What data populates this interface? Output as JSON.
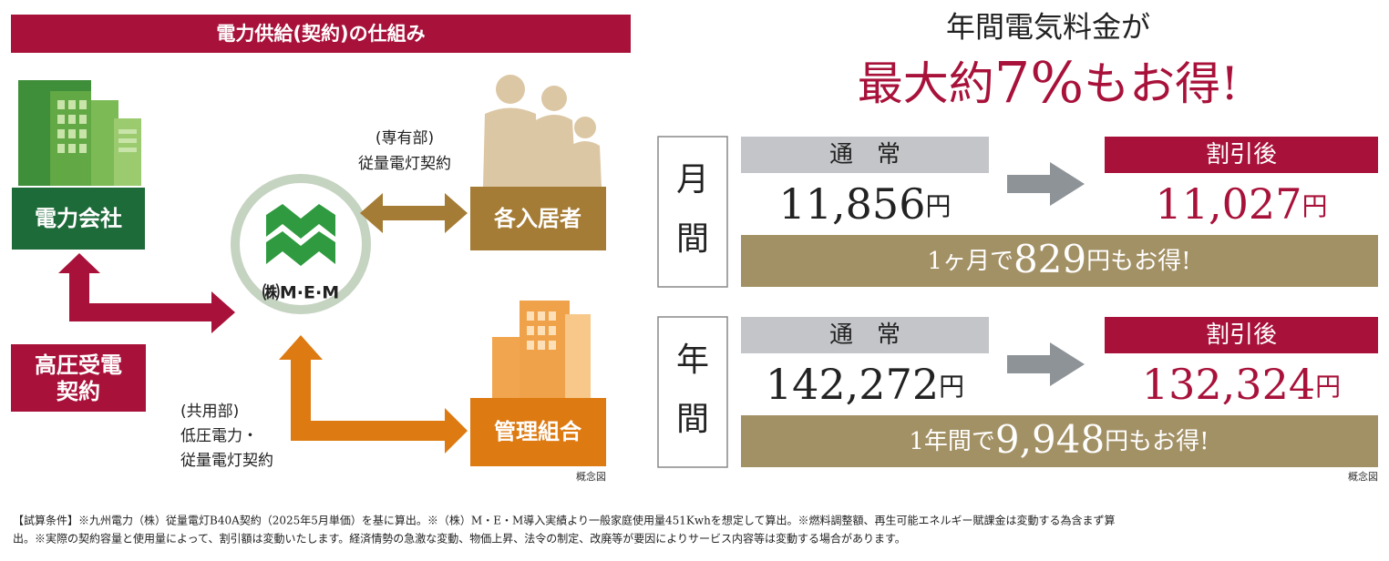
{
  "left": {
    "title": "電力供給(契約)の仕組み",
    "power_company": "電力会社",
    "high_voltage": [
      "高圧受電",
      "契約"
    ],
    "mem": "㈱M·E·M",
    "residents": "各入居者",
    "management": "管理組合",
    "private_part": [
      "(専有部)",
      "従量電灯契約"
    ],
    "common_part": [
      "(共用部)",
      "低圧電力・",
      "従量電灯契約"
    ],
    "note": "概念図"
  },
  "right": {
    "headline": "年間電気料金が",
    "highlight": [
      "最大約",
      "7%",
      "もお得!"
    ],
    "rows": [
      {
        "period": [
          "月",
          "間"
        ],
        "normal_label": "通　常",
        "normal_value": "11,856",
        "normal_unit": "円",
        "discount_label": "割引後",
        "discount_value": "11,027",
        "discount_unit": "円",
        "saving": [
          "1ヶ月で",
          "829",
          "円もお得!"
        ]
      },
      {
        "period": [
          "年",
          "間"
        ],
        "normal_label": "通　常",
        "normal_value": "142,272",
        "normal_unit": "円",
        "discount_label": "割引後",
        "discount_value": "132,324",
        "discount_unit": "円",
        "saving": [
          "1年間で",
          "9,948",
          "円もお得!"
        ]
      }
    ],
    "note": "概念図"
  },
  "footer": [
    "【試算条件】※九州電力（株）従量電灯B40A契約（2025年5月単価）を基に算出。※（株）M・E・M導入実績より一般家庭使用量451Kwhを想定して算出。※燃料調整額、再生可能エネルギー賦課金は変動する為含まず算",
    "出。※実際の契約容量と使用量によって、割引額は変動いたします。経済情勢の急激な変動、物価上昇、法令の制定、改廃等が要因によりサービス内容等は変動する場合があります。"
  ]
}
